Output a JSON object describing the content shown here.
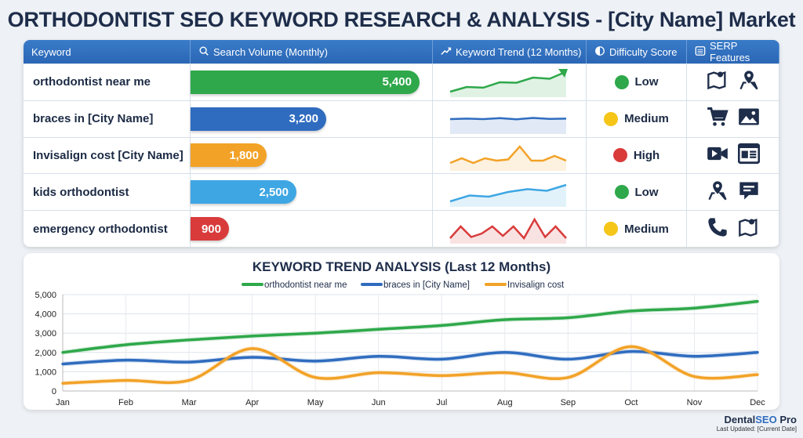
{
  "title": "ORTHODONTIST SEO KEYWORD RESEARCH & ANALYSIS - [City Name] Market",
  "table": {
    "headers": [
      {
        "label": "Keyword",
        "icon": ""
      },
      {
        "label": "Search Volume (Monthly)",
        "icon": "search-icon"
      },
      {
        "label": "Keyword Trend (12 Months)",
        "icon": "trend-up-icon"
      },
      {
        "label": "Difficulty Score",
        "icon": "half-circle-icon"
      },
      {
        "label": "SERP Features",
        "icon": "list-icon"
      }
    ],
    "max_volume": 5400,
    "rows": [
      {
        "keyword": "orthodontist near me",
        "volume": 5400,
        "volume_label": "5,400",
        "color": "#2ea84a",
        "trend": [
          0.1,
          0.3,
          0.27,
          0.5,
          0.48,
          0.7,
          0.65,
          0.95
        ],
        "trend_arrow": true,
        "difficulty": "Low",
        "difficulty_color": "#2ea84a",
        "serp": [
          "map-icon",
          "location-pin-icon"
        ]
      },
      {
        "keyword": "braces in [City Name]",
        "volume": 3200,
        "volume_label": "3,200",
        "color": "#2f6cbf",
        "trend": [
          0.5,
          0.52,
          0.5,
          0.54,
          0.49,
          0.55,
          0.51,
          0.52
        ],
        "difficulty": "Medium",
        "difficulty_color": "#f5c518",
        "serp": [
          "cart-icon",
          "image-icon"
        ]
      },
      {
        "keyword": "Invisalign cost [City Name]",
        "volume": 1800,
        "volume_label": "1,800",
        "color": "#f2a227",
        "trend": [
          0.2,
          0.4,
          0.2,
          0.4,
          0.3,
          0.35,
          0.9,
          0.3,
          0.3,
          0.5,
          0.3
        ],
        "difficulty": "High",
        "difficulty_color": "#d93b3b",
        "serp": [
          "video-icon",
          "webpage-icon"
        ]
      },
      {
        "keyword": "kids orthodontist",
        "volume": 2500,
        "volume_label": "2,500",
        "color": "#3ea6e3",
        "trend": [
          0.1,
          0.35,
          0.3,
          0.5,
          0.62,
          0.55,
          0.8
        ],
        "difficulty": "Low",
        "difficulty_color": "#2ea84a",
        "serp": [
          "location-pin-icon",
          "chat-icon"
        ]
      },
      {
        "keyword": "emergency orthodontist",
        "volume": 900,
        "volume_label": "900",
        "color": "#d93b3b",
        "trend": [
          0.1,
          0.6,
          0.15,
          0.3,
          0.6,
          0.2,
          0.6,
          0.1,
          0.9,
          0.15,
          0.6,
          0.1
        ],
        "difficulty": "Medium",
        "difficulty_color": "#f5c518",
        "serp": [
          "phone-icon",
          "map-icon"
        ]
      }
    ]
  },
  "chart_data": {
    "type": "line",
    "title": "KEYWORD TREND ANALYSIS (Last 12 Months)",
    "categories": [
      "Jan",
      "Feb",
      "Mar",
      "Apr",
      "May",
      "Jun",
      "Jul",
      "Aug",
      "Sep",
      "Oct",
      "Nov",
      "Dec"
    ],
    "ylim": [
      0,
      5000
    ],
    "yticks": [
      0,
      1000,
      2000,
      3000,
      4000,
      5000
    ],
    "ytick_labels": [
      "0",
      "1,000",
      "2,000",
      "3,000",
      "4,000",
      "5,000"
    ],
    "grid": true,
    "legend": "top-center",
    "series": [
      {
        "name": "orthodontist near me",
        "color": "#2ea84a",
        "values": [
          2000,
          2400,
          2650,
          2850,
          3000,
          3200,
          3400,
          3700,
          3800,
          4150,
          4300,
          4650
        ]
      },
      {
        "name": "braces in [City Name]",
        "color": "#2f6cbf",
        "values": [
          1400,
          1600,
          1500,
          1750,
          1550,
          1800,
          1650,
          2000,
          1650,
          2050,
          1800,
          2000
        ]
      },
      {
        "name": "Invisalign cost",
        "color": "#f2a227",
        "values": [
          400,
          550,
          550,
          2200,
          700,
          950,
          800,
          950,
          700,
          2300,
          750,
          850
        ]
      }
    ]
  },
  "brand": {
    "name_part1": "Dental",
    "name_part2": "SEO",
    "name_part3": " Pro",
    "accent": "#2f6cbf",
    "updated": "Last Updated: [Current Date]"
  }
}
